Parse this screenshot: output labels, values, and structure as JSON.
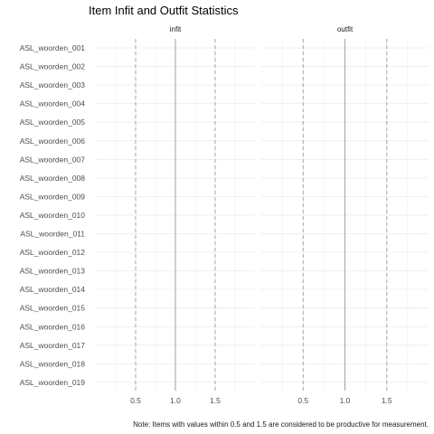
{
  "chart_data": {
    "type": "scatter",
    "title": "Item Infit and Outfit Statistics",
    "caption": "Note: Items with values within 0.5 and 1.5 are considered to be productive for measurement.",
    "facets": [
      "infit",
      "outfit"
    ],
    "items": [
      "ASL_woorden_019",
      "ASL_woorden_018",
      "ASL_woorden_017",
      "ASL_woorden_016",
      "ASL_woorden_015",
      "ASL_woorden_014",
      "ASL_woorden_013",
      "ASL_woorden_012",
      "ASL_woorden_011",
      "ASL_woorden_010",
      "ASL_woorden_009",
      "ASL_woorden_008",
      "ASL_woorden_007",
      "ASL_woorden_006",
      "ASL_woorden_005",
      "ASL_woorden_004",
      "ASL_woorden_003",
      "ASL_woorden_002",
      "ASL_woorden_001"
    ],
    "x_ticks": [
      0.5,
      1.0,
      1.5
    ],
    "x_tick_labels": [
      "0.5",
      "1.0",
      "1.5"
    ],
    "xlim": [
      0.0,
      2.0
    ],
    "reference_lines": {
      "solid": 1.0,
      "dashed": [
        0.5,
        1.5
      ]
    },
    "series": [],
    "grid": true,
    "legend": "none",
    "colors": {
      "grid": "#ebebeb",
      "solid_line": "#a6a6a6",
      "dashed_line": "#a6a6a6",
      "text": "#4d4d4d"
    }
  }
}
